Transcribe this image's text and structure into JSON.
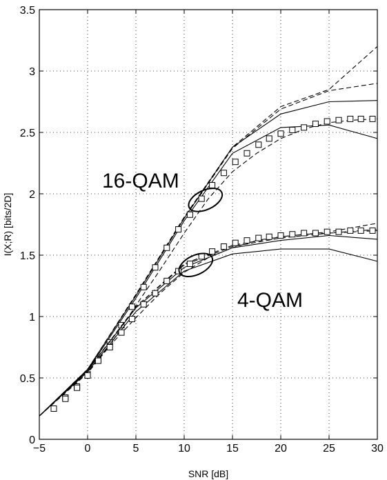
{
  "chart_data": {
    "type": "line",
    "xlabel": "SNR [dB]",
    "ylabel": "I(X;R) [bits/2D]",
    "xlim": [
      -5,
      30
    ],
    "ylim": [
      0,
      3.5
    ],
    "xticks": [
      -5,
      0,
      5,
      10,
      15,
      20,
      25,
      30
    ],
    "yticks": [
      0,
      0.5,
      1,
      1.5,
      2,
      2.5,
      3,
      3.5
    ],
    "xtick_labels": [
      "−5",
      "0",
      "5",
      "10",
      "15",
      "20",
      "25",
      "30"
    ],
    "ytick_labels": [
      "0",
      "0.5",
      "1",
      "1.5",
      "2",
      "2.5",
      "3",
      "3.5"
    ],
    "grid": true,
    "annotations": [
      {
        "text": "16-QAM",
        "x": 1.5,
        "y": 2.05,
        "ellipse": {
          "x": 12.2,
          "y": 1.95
        }
      },
      {
        "text": "4-QAM",
        "x": 15.5,
        "y": 1.08,
        "ellipse": {
          "x": 11.2,
          "y": 1.42
        }
      }
    ],
    "series": [
      {
        "style": "solid",
        "x": [
          -5,
          0,
          5,
          10,
          15,
          20,
          25,
          30
        ],
        "y": [
          0.19,
          0.57,
          1.17,
          1.8,
          2.38,
          2.65,
          2.75,
          2.76
        ]
      },
      {
        "style": "solid",
        "x": [
          -5,
          0,
          5,
          10,
          15,
          20,
          25,
          30
        ],
        "y": [
          0.19,
          0.56,
          1.15,
          1.78,
          2.33,
          2.54,
          2.56,
          2.45
        ]
      },
      {
        "style": "dashed",
        "x": [
          -5,
          0,
          5,
          10,
          15,
          20,
          25,
          30
        ],
        "y": [
          0.19,
          0.57,
          1.18,
          1.81,
          2.38,
          2.71,
          2.85,
          3.2
        ]
      },
      {
        "style": "dashed",
        "x": [
          -5,
          0,
          5,
          10,
          15,
          20,
          25,
          30
        ],
        "y": [
          0.19,
          0.57,
          1.17,
          1.8,
          2.37,
          2.69,
          2.84,
          2.9
        ]
      },
      {
        "style": "dashed",
        "x": [
          -5,
          0,
          2.5,
          5,
          7.5,
          10,
          12.5,
          15,
          17.5,
          20,
          22.5,
          25,
          27.5,
          30
        ],
        "y": [
          0.19,
          0.54,
          0.79,
          1.09,
          1.38,
          1.68,
          1.96,
          2.18,
          2.33,
          2.45,
          2.53,
          2.58,
          2.6,
          2.61
        ]
      },
      {
        "style": "squares",
        "x": [
          -3.5,
          -2.3,
          -1.1,
          0,
          1.1,
          2.3,
          3.5,
          4.6,
          5.8,
          7.0,
          8.2,
          9.4,
          10.6,
          11.8,
          12.9,
          14.1,
          15.3,
          16.5,
          17.7,
          18.8,
          20.0,
          21.2,
          22.4,
          23.6,
          24.8,
          26.0,
          27.2,
          28.3,
          29.5
        ],
        "y": [
          0.25,
          0.34,
          0.43,
          0.53,
          0.65,
          0.79,
          0.93,
          1.08,
          1.24,
          1.4,
          1.56,
          1.71,
          1.83,
          1.96,
          2.07,
          2.17,
          2.26,
          2.33,
          2.4,
          2.45,
          2.49,
          2.52,
          2.54,
          2.57,
          2.59,
          2.6,
          2.61,
          2.61,
          2.61
        ]
      },
      {
        "style": "solid",
        "x": [
          -5,
          0,
          5,
          10,
          15,
          20,
          25,
          30
        ],
        "y": [
          0.19,
          0.56,
          1.07,
          1.4,
          1.56,
          1.62,
          1.66,
          1.63
        ]
      },
      {
        "style": "solid",
        "x": [
          -5,
          0,
          5,
          10,
          15,
          20,
          25,
          30
        ],
        "y": [
          0.19,
          0.55,
          1.04,
          1.37,
          1.51,
          1.55,
          1.55,
          1.45
        ]
      },
      {
        "style": "dashed",
        "x": [
          -5,
          0,
          5,
          10,
          15,
          20,
          25,
          30
        ],
        "y": [
          0.19,
          0.56,
          1.08,
          1.43,
          1.58,
          1.65,
          1.69,
          1.76
        ]
      },
      {
        "style": "dashed",
        "x": [
          -5,
          0,
          5,
          10,
          15,
          20,
          25,
          30
        ],
        "y": [
          0.19,
          0.56,
          1.08,
          1.42,
          1.57,
          1.64,
          1.68,
          1.71
        ]
      },
      {
        "style": "dashed",
        "x": [
          -5,
          0,
          2.5,
          5,
          7.5,
          10,
          12.5,
          15,
          17.5,
          20,
          22.5,
          25,
          27.5,
          30
        ],
        "y": [
          0.19,
          0.54,
          0.78,
          0.99,
          1.19,
          1.36,
          1.48,
          1.56,
          1.62,
          1.65,
          1.67,
          1.68,
          1.69,
          1.7
        ]
      },
      {
        "style": "squares",
        "x": [
          -3.5,
          -2.3,
          -1.1,
          0,
          1.1,
          2.3,
          3.5,
          4.6,
          5.8,
          7.0,
          8.2,
          9.4,
          10.6,
          11.8,
          12.9,
          14.1,
          15.3,
          16.5,
          17.7,
          18.8,
          20.0,
          21.2,
          22.4,
          23.6,
          24.8,
          26.0,
          27.2,
          28.3,
          29.5
        ],
        "y": [
          0.25,
          0.33,
          0.42,
          0.52,
          0.64,
          0.75,
          0.87,
          0.98,
          1.1,
          1.19,
          1.29,
          1.37,
          1.43,
          1.49,
          1.53,
          1.57,
          1.6,
          1.62,
          1.64,
          1.65,
          1.66,
          1.67,
          1.68,
          1.68,
          1.69,
          1.69,
          1.7,
          1.7,
          1.7
        ]
      }
    ]
  }
}
